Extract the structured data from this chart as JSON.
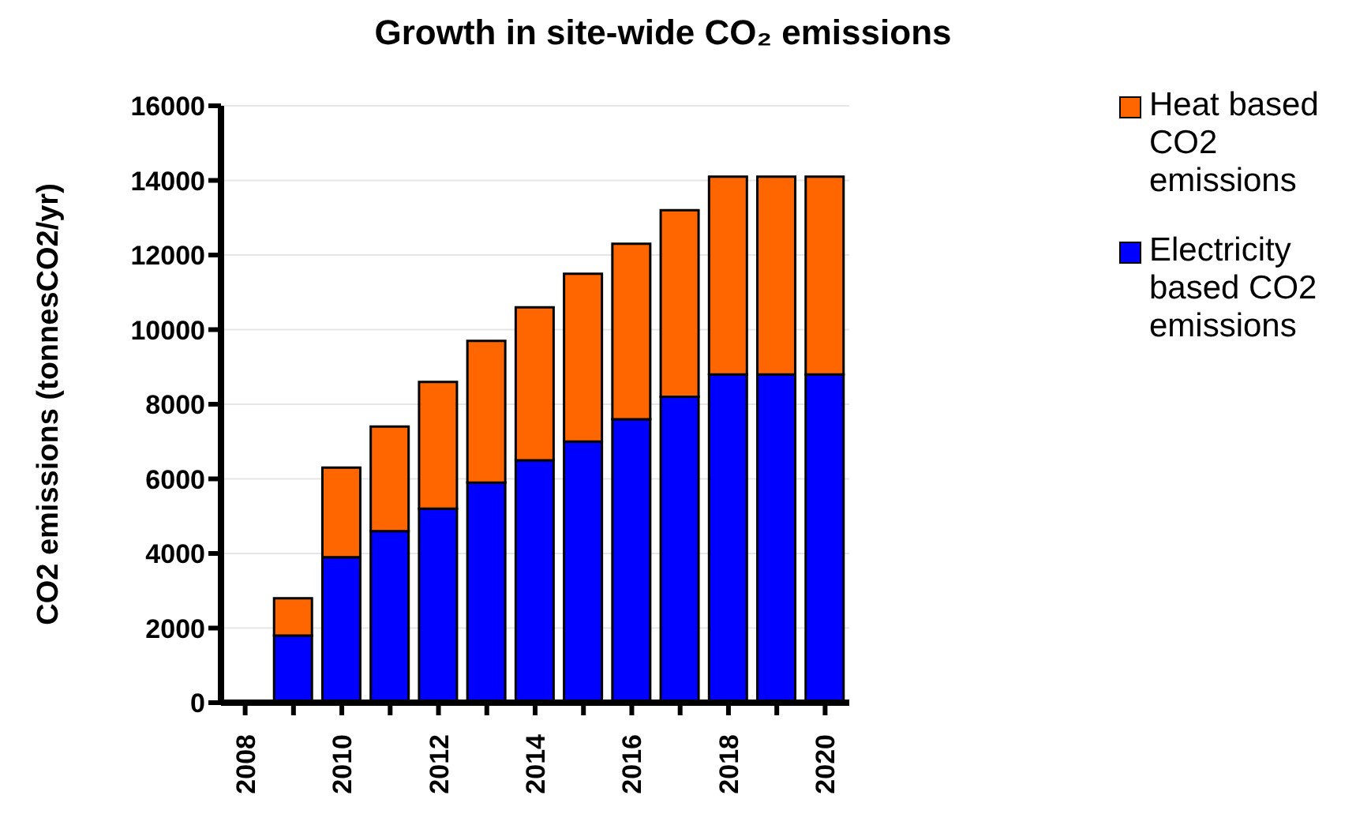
{
  "chart_data": {
    "type": "bar",
    "title": "Growth in site-wide CO₂ emissions",
    "ylabel": "CO2 emissions (tonnesCO2/yr)",
    "categories": [
      "2008",
      null,
      "2010",
      null,
      "2012",
      null,
      "2014",
      null,
      "2016",
      null,
      "2018",
      null,
      "2020"
    ],
    "stacked": true,
    "series": [
      {
        "name": "Electricity based CO2 emissions",
        "color": "#0000ff",
        "values": [
          null,
          1800,
          3900,
          4600,
          5200,
          5900,
          6500,
          7000,
          7600,
          8200,
          8800,
          8800,
          8800
        ]
      },
      {
        "name": "Heat based CO2 emissions",
        "color": "#ff6600",
        "values": [
          null,
          1000,
          2400,
          2800,
          3400,
          3800,
          4100,
          4500,
          4700,
          5000,
          5300,
          5300,
          5300
        ]
      }
    ],
    "ylim": [
      0,
      16000
    ],
    "yticks": [
      0,
      2000,
      4000,
      6000,
      8000,
      10000,
      12000,
      14000,
      16000
    ],
    "grid": "y",
    "legend": "right"
  }
}
